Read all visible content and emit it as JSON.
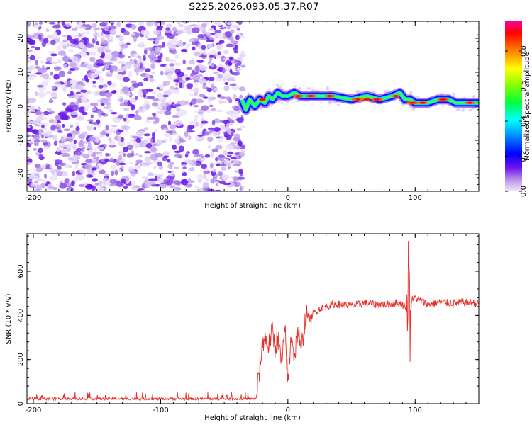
{
  "title": "S225.2026.093.05.37.R07",
  "chart_data": [
    {
      "type": "heatmap",
      "name": "spectrogram",
      "xlabel": "Height of straight line (km)",
      "ylabel": "Frequency (Hz)",
      "xlim": [
        -205,
        150
      ],
      "ylim": [
        -25,
        25
      ],
      "xticks": [
        -200,
        -100,
        0,
        100
      ],
      "yticks": [
        -20,
        -10,
        0,
        10,
        20
      ],
      "noise_region_x": [
        -205,
        -35
      ],
      "ridge": [
        [
          -36,
          2
        ],
        [
          -33,
          -1
        ],
        [
          -30,
          2
        ],
        [
          -26,
          0
        ],
        [
          -22,
          2
        ],
        [
          -18,
          1
        ],
        [
          -15,
          3
        ],
        [
          -12,
          2
        ],
        [
          -8,
          4
        ],
        [
          -4,
          3
        ],
        [
          0,
          3
        ],
        [
          5,
          4
        ],
        [
          10,
          3
        ],
        [
          20,
          3
        ],
        [
          35,
          3
        ],
        [
          50,
          2
        ],
        [
          62,
          3
        ],
        [
          72,
          2
        ],
        [
          82,
          3
        ],
        [
          88,
          4
        ],
        [
          92,
          2
        ],
        [
          96,
          2
        ],
        [
          100,
          1
        ],
        [
          110,
          1
        ],
        [
          118,
          2
        ],
        [
          126,
          2
        ],
        [
          132,
          1
        ],
        [
          140,
          1
        ],
        [
          150,
          1
        ]
      ],
      "colorbar": {
        "label": "Normalized spectral amplitude",
        "range": [
          0,
          0.97
        ],
        "ticks": [
          0.0,
          0.2,
          0.4,
          0.6,
          0.8
        ]
      }
    },
    {
      "type": "line",
      "name": "snr",
      "xlabel": "Height of straight line (km)",
      "ylabel": "SNR (10 * v/v)",
      "xlim": [
        -205,
        150
      ],
      "ylim": [
        0,
        770
      ],
      "xticks": [
        -200,
        -100,
        0,
        100
      ],
      "yticks": [
        0,
        200,
        400,
        600
      ],
      "color": "#e8302a",
      "series": [
        {
          "name": "SNR",
          "x": [
            -205,
            -25,
            -22,
            -20,
            -18,
            -15,
            -12,
            -10,
            -8,
            -5,
            -2,
            0,
            3,
            5,
            8,
            10,
            13,
            15,
            18,
            20,
            25,
            30,
            35,
            40,
            50,
            60,
            70,
            80,
            88,
            92,
            94,
            95,
            96,
            97,
            100,
            110,
            120,
            130,
            140,
            150
          ],
          "y": [
            22,
            22,
            160,
            280,
            300,
            260,
            330,
            250,
            310,
            180,
            330,
            80,
            340,
            200,
            350,
            220,
            360,
            400,
            380,
            410,
            430,
            440,
            450,
            450,
            445,
            455,
            450,
            450,
            460,
            440,
            430,
            760,
            300,
            470,
            480,
            450,
            460,
            455,
            460,
            455
          ]
        }
      ]
    }
  ]
}
